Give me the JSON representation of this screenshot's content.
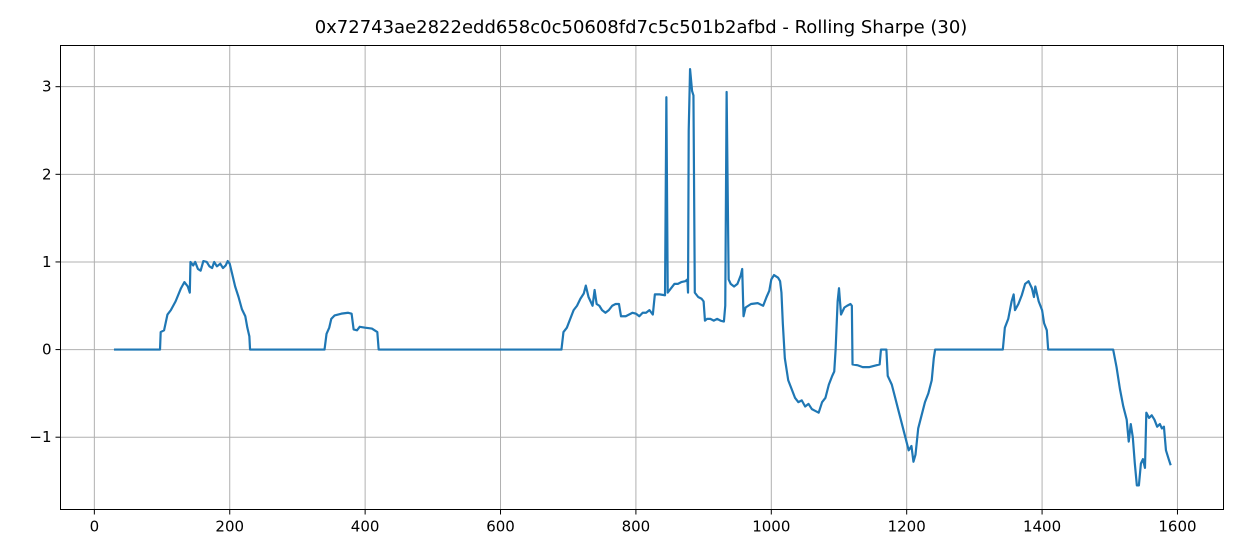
{
  "chart_data": {
    "type": "line",
    "title": "0x72743ae2822edd658c0c50608fd7c5c501b2afbd - Rolling Sharpe (30)",
    "xlim": [
      -50,
      1668
    ],
    "ylim": [
      -1.825,
      3.47
    ],
    "xticks": [
      0,
      200,
      400,
      600,
      800,
      1000,
      1200,
      1400,
      1600
    ],
    "yticks": [
      {
        "value": -1,
        "label": "−1"
      },
      0,
      1,
      2,
      3
    ],
    "grid": true,
    "series": [
      {
        "color": "#1f77b4",
        "x": [
          29,
          97,
          98,
          103,
          108,
          113,
          120,
          128,
          133,
          138,
          141,
          142,
          146,
          149,
          153,
          157,
          161,
          166,
          170,
          174,
          177,
          181,
          186,
          190,
          194,
          197,
          200,
          204,
          208,
          213,
          218,
          223,
          226,
          229,
          230,
          340,
          343,
          347,
          350,
          355,
          365,
          375,
          380,
          383,
          388,
          392,
          400,
          410,
          414,
          418,
          420,
          690,
          693,
          698,
          703,
          708,
          713,
          718,
          723,
          726,
          730,
          733,
          736,
          739,
          742,
          746,
          750,
          755,
          760,
          765,
          770,
          775,
          778,
          785,
          790,
          795,
          800,
          805,
          810,
          815,
          820,
          825,
          828,
          835,
          843,
          845,
          847,
          852,
          857,
          862,
          867,
          873,
          876,
          877,
          878,
          880,
          883,
          885,
          887,
          892,
          897,
          900,
          902,
          905,
          910,
          915,
          920,
          925,
          930,
          932,
          934,
          937,
          940,
          945,
          950,
          955,
          957,
          959,
          962,
          970,
          980,
          988,
          993,
          997,
          1000,
          1004,
          1010,
          1013,
          1015,
          1017,
          1020,
          1025,
          1030,
          1035,
          1040,
          1045,
          1050,
          1055,
          1060,
          1065,
          1070,
          1075,
          1080,
          1085,
          1090,
          1093,
          1095,
          1098,
          1100,
          1103,
          1108,
          1112,
          1117,
          1119,
          1120,
          1128,
          1135,
          1145,
          1155,
          1160,
          1162,
          1170,
          1172,
          1178,
          1183,
          1188,
          1193,
          1198,
          1203,
          1207,
          1210,
          1213,
          1217,
          1222,
          1227,
          1232,
          1237,
          1240,
          1242,
          1342,
          1345,
          1350,
          1355,
          1358,
          1360,
          1365,
          1370,
          1375,
          1380,
          1385,
          1388,
          1390,
          1395,
          1400,
          1403,
          1407,
          1409,
          1505,
          1510,
          1515,
          1520,
          1525,
          1528,
          1531,
          1534,
          1537,
          1540,
          1543,
          1546,
          1549,
          1552,
          1554,
          1558,
          1562,
          1566,
          1570,
          1574,
          1577,
          1580,
          1583,
          1587,
          1590
        ],
        "values": [
          0,
          0,
          0.2,
          0.22,
          0.4,
          0.45,
          0.55,
          0.7,
          0.77,
          0.72,
          0.65,
          1.0,
          0.96,
          1.0,
          0.92,
          0.9,
          1.01,
          1.0,
          0.95,
          0.93,
          1.0,
          0.95,
          0.98,
          0.93,
          0.96,
          1.01,
          0.98,
          0.85,
          0.72,
          0.6,
          0.46,
          0.38,
          0.25,
          0.15,
          0,
          0,
          0.18,
          0.25,
          0.35,
          0.39,
          0.41,
          0.42,
          0.41,
          0.23,
          0.22,
          0.26,
          0.25,
          0.24,
          0.22,
          0.2,
          0,
          0,
          0.2,
          0.25,
          0.35,
          0.45,
          0.5,
          0.58,
          0.64,
          0.73,
          0.6,
          0.55,
          0.5,
          0.68,
          0.52,
          0.5,
          0.45,
          0.42,
          0.45,
          0.5,
          0.52,
          0.52,
          0.38,
          0.38,
          0.4,
          0.42,
          0.41,
          0.38,
          0.42,
          0.42,
          0.45,
          0.4,
          0.63,
          0.63,
          0.62,
          2.88,
          0.65,
          0.7,
          0.75,
          0.75,
          0.77,
          0.78,
          0.8,
          0.65,
          2.5,
          3.2,
          2.95,
          2.9,
          0.65,
          0.6,
          0.58,
          0.55,
          0.33,
          0.35,
          0.35,
          0.33,
          0.35,
          0.33,
          0.32,
          0.5,
          2.94,
          0.8,
          0.75,
          0.72,
          0.75,
          0.85,
          0.92,
          0.38,
          0.48,
          0.52,
          0.53,
          0.5,
          0.6,
          0.67,
          0.8,
          0.85,
          0.82,
          0.78,
          0.65,
          0.3,
          -0.1,
          -0.35,
          -0.45,
          -0.55,
          -0.6,
          -0.58,
          -0.65,
          -0.62,
          -0.68,
          -0.7,
          -0.72,
          -0.6,
          -0.55,
          -0.4,
          -0.3,
          -0.25,
          0.0,
          0.55,
          0.7,
          0.4,
          0.48,
          0.5,
          0.52,
          0.5,
          -0.17,
          -0.18,
          -0.2,
          -0.2,
          -0.18,
          -0.17,
          0,
          0,
          -0.3,
          -0.4,
          -0.55,
          -0.7,
          -0.85,
          -1.0,
          -1.15,
          -1.1,
          -1.28,
          -1.2,
          -0.9,
          -0.75,
          -0.6,
          -0.5,
          -0.35,
          -0.1,
          0,
          0,
          0.25,
          0.35,
          0.55,
          0.63,
          0.45,
          0.52,
          0.62,
          0.75,
          0.78,
          0.7,
          0.6,
          0.72,
          0.55,
          0.45,
          0.3,
          0.22,
          0,
          0,
          -0.2,
          -0.45,
          -0.65,
          -0.8,
          -1.05,
          -0.85,
          -1.0,
          -1.3,
          -1.55,
          -1.55,
          -1.3,
          -1.25,
          -1.35,
          -0.72,
          -0.78,
          -0.75,
          -0.8,
          -0.88,
          -0.85,
          -0.9,
          -0.88,
          -1.15,
          -1.25,
          -1.32
        ]
      }
    ]
  }
}
